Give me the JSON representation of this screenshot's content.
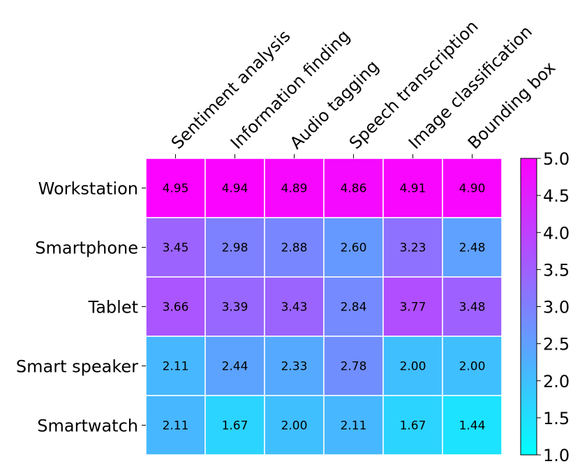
{
  "chart_data": {
    "type": "heatmap",
    "columns": [
      "Sentiment analysis",
      "Information finding",
      "Audio tagging",
      "Speech transcription",
      "Image classification",
      "Bounding box"
    ],
    "rows": [
      "Workstation",
      "Smartphone",
      "Tablet",
      "Smart speaker",
      "Smartwatch"
    ],
    "values": [
      [
        4.95,
        4.94,
        4.89,
        4.86,
        4.91,
        4.9
      ],
      [
        3.45,
        2.98,
        2.88,
        2.6,
        3.23,
        2.48
      ],
      [
        3.66,
        3.39,
        3.43,
        2.84,
        3.77,
        3.48
      ],
      [
        2.11,
        2.44,
        2.33,
        2.78,
        2.0,
        2.0
      ],
      [
        2.11,
        1.67,
        2.0,
        2.11,
        1.67,
        1.44
      ]
    ],
    "value_format": "2 decimals",
    "colorbar": {
      "min": 1.0,
      "max": 5.0,
      "ticks": [
        "1.0",
        "1.5",
        "2.0",
        "2.5",
        "3.0",
        "3.5",
        "4.0",
        "4.5",
        "5.0"
      ],
      "colormap": "cool",
      "low_color": "#00ffff",
      "high_color": "#ff00ff"
    }
  }
}
